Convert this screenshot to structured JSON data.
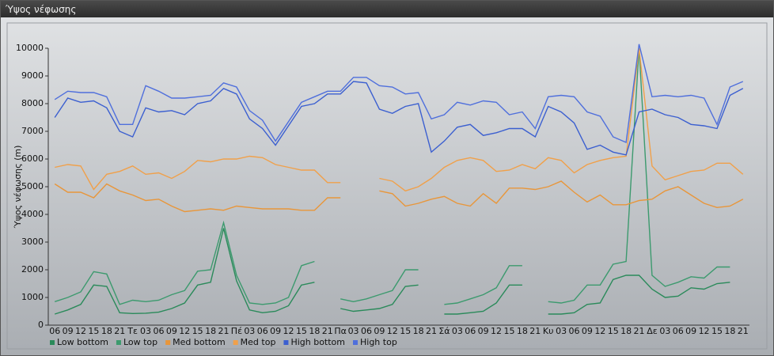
{
  "window": {
    "title": "Ύψος νέφωσης"
  },
  "chart_data": {
    "type": "line",
    "ylabel": "Ύψος νέφωσης (m)",
    "categories": [
      "06",
      "09",
      "12",
      "15",
      "18",
      "21",
      "Τε",
      "03",
      "06",
      "09",
      "12",
      "15",
      "18",
      "21",
      "Πέ",
      "03",
      "06",
      "09",
      "12",
      "15",
      "18",
      "21",
      "Πα",
      "03",
      "06",
      "09",
      "12",
      "15",
      "18",
      "21",
      "Σά",
      "03",
      "06",
      "09",
      "12",
      "15",
      "18",
      "21",
      "Κυ",
      "03",
      "06",
      "09",
      "12",
      "15",
      "18",
      "21",
      "Δε",
      "03",
      "06",
      "09",
      "12",
      "15",
      "18",
      "21"
    ],
    "ylim": [
      0,
      10000
    ],
    "yticks": [
      0,
      1000,
      2000,
      3000,
      4000,
      5000,
      6000,
      7000,
      8000,
      9000,
      10000
    ],
    "grid": false,
    "legend": "bottom",
    "series": [
      {
        "name": "Low bottom",
        "color": "#2a8a5a",
        "values": [
          400,
          550,
          750,
          1450,
          1400,
          450,
          420,
          430,
          470,
          600,
          800,
          1450,
          1550,
          3500,
          1600,
          550,
          450,
          500,
          700,
          1450,
          1550,
          null,
          600,
          500,
          550,
          600,
          750,
          1400,
          1450,
          null,
          400,
          400,
          450,
          500,
          800,
          1450,
          1450,
          null,
          400,
          400,
          450,
          750,
          800,
          1650,
          1800,
          1800,
          1300,
          1000,
          1050,
          1350,
          1300,
          1500,
          1550,
          null
        ]
      },
      {
        "name": "Low top",
        "color": "#3c9a6e",
        "values": [
          850,
          1000,
          1200,
          1930,
          1850,
          750,
          900,
          850,
          900,
          1100,
          1250,
          1950,
          2000,
          3700,
          1800,
          800,
          750,
          800,
          1000,
          2150,
          2300,
          null,
          950,
          850,
          950,
          1100,
          1250,
          2000,
          2000,
          null,
          750,
          800,
          950,
          1100,
          1350,
          2150,
          2150,
          null,
          850,
          800,
          900,
          1450,
          1450,
          2200,
          2300,
          10000,
          1800,
          1400,
          1550,
          1750,
          1700,
          2100,
          2100,
          null
        ]
      },
      {
        "name": "Med bottom",
        "color": "#e8963a",
        "values": [
          5100,
          4800,
          4800,
          4600,
          5100,
          4850,
          4700,
          4500,
          4550,
          4300,
          4100,
          4150,
          4200,
          4150,
          4300,
          4250,
          4200,
          4200,
          4200,
          4150,
          4150,
          4600,
          4600,
          null,
          null,
          4850,
          4750,
          4300,
          4400,
          4550,
          4650,
          4400,
          4300,
          4750,
          4400,
          4950,
          4950,
          4900,
          5000,
          5200,
          4800,
          4450,
          4700,
          4350,
          4350,
          4500,
          4550,
          4850,
          5000,
          4700,
          4400,
          4250,
          4300,
          4550
        ]
      },
      {
        "name": "Med top",
        "color": "#f0a04a",
        "values": [
          5700,
          5800,
          5750,
          4900,
          5450,
          5550,
          5750,
          5450,
          5500,
          5300,
          5550,
          5950,
          5900,
          6000,
          6000,
          6100,
          6050,
          5800,
          5700,
          5600,
          5600,
          5150,
          5150,
          null,
          null,
          5300,
          5200,
          4850,
          5000,
          5300,
          5700,
          5950,
          6050,
          5950,
          5550,
          5600,
          5800,
          5650,
          6050,
          5950,
          5500,
          5800,
          5950,
          6050,
          6100,
          10000,
          5750,
          5250,
          5400,
          5550,
          5600,
          5850,
          5850,
          5450
        ]
      },
      {
        "name": "High bottom",
        "color": "#3b5fd0",
        "values": [
          7500,
          8200,
          8050,
          8100,
          7850,
          7000,
          6800,
          7850,
          7700,
          7750,
          7600,
          8000,
          8100,
          8550,
          8350,
          7450,
          7100,
          6500,
          7200,
          7900,
          8000,
          8350,
          8350,
          8800,
          8750,
          7800,
          7650,
          7900,
          8000,
          6250,
          6650,
          7150,
          7250,
          6850,
          6950,
          7100,
          7100,
          6800,
          7900,
          7700,
          7300,
          6350,
          6500,
          6250,
          6150,
          7700,
          7800,
          7600,
          7500,
          7250,
          7200,
          7100,
          8300,
          8550
        ]
      },
      {
        "name": "High top",
        "color": "#4f6fdc",
        "values": [
          8150,
          8450,
          8400,
          8400,
          8250,
          7250,
          7250,
          8650,
          8450,
          8200,
          8200,
          8250,
          8300,
          8750,
          8600,
          7750,
          7400,
          6650,
          7350,
          8050,
          8250,
          8450,
          8450,
          8950,
          8950,
          8650,
          8600,
          8350,
          8400,
          7450,
          7600,
          8050,
          7950,
          8100,
          8050,
          7600,
          7700,
          7100,
          8250,
          8300,
          8250,
          7700,
          7550,
          6800,
          6600,
          10150,
          8250,
          8300,
          8250,
          8300,
          8200,
          7250,
          8600,
          8800
        ]
      }
    ]
  }
}
